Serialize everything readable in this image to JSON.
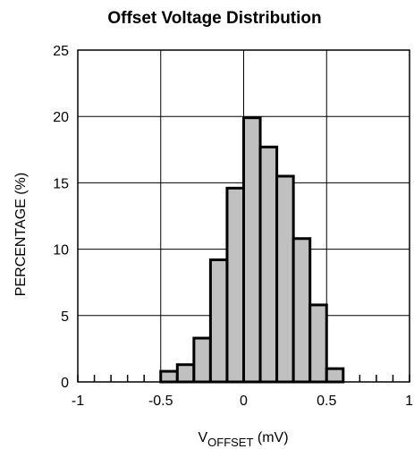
{
  "chart_data": {
    "type": "bar",
    "title": "Offset Voltage Distribution",
    "xlabel_main": "V",
    "xlabel_sub": "OFFSET",
    "xlabel_unit": " (mV)",
    "ylabel": "PERCENTAGE (%)",
    "xlim": [
      -1,
      1
    ],
    "ylim": [
      0,
      25
    ],
    "x_ticks": [
      -1,
      -0.5,
      0,
      0.5,
      1
    ],
    "x_tick_labels": [
      "-1",
      "-0.5",
      "0",
      "0.5",
      "1"
    ],
    "y_ticks": [
      0,
      5,
      10,
      15,
      20,
      25
    ],
    "y_tick_labels": [
      "0",
      "5",
      "10",
      "15",
      "20",
      "25"
    ],
    "grid": true,
    "bin_width": 0.1,
    "bins": [
      {
        "x0": -0.5,
        "x1": -0.4,
        "value": 0.8
      },
      {
        "x0": -0.4,
        "x1": -0.3,
        "value": 1.3
      },
      {
        "x0": -0.3,
        "x1": -0.2,
        "value": 3.3
      },
      {
        "x0": -0.2,
        "x1": -0.1,
        "value": 9.2
      },
      {
        "x0": -0.1,
        "x1": 0.0,
        "value": 14.6
      },
      {
        "x0": 0.0,
        "x1": 0.1,
        "value": 19.9
      },
      {
        "x0": 0.1,
        "x1": 0.2,
        "value": 17.7
      },
      {
        "x0": 0.2,
        "x1": 0.3,
        "value": 15.5
      },
      {
        "x0": 0.3,
        "x1": 0.4,
        "value": 10.8
      },
      {
        "x0": 0.4,
        "x1": 0.5,
        "value": 5.8
      },
      {
        "x0": 0.5,
        "x1": 0.6,
        "value": 1.0
      }
    ],
    "bar_color": "#c0c0c0",
    "edge_color": "#000000"
  }
}
